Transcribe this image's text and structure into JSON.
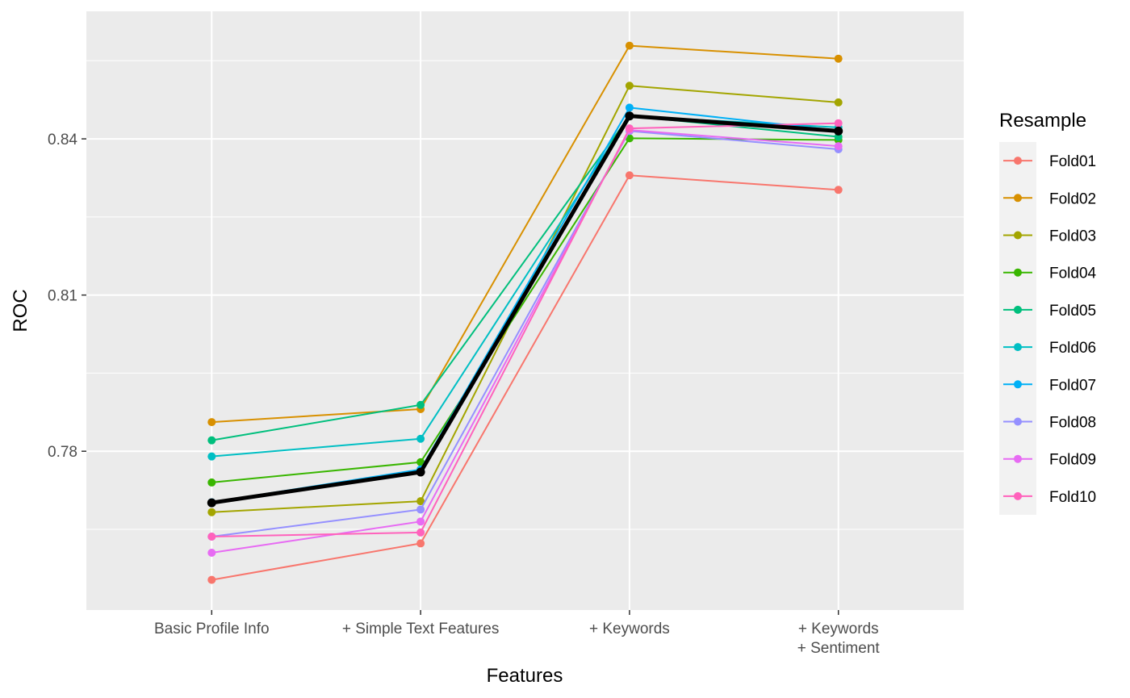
{
  "chart_data": {
    "type": "line",
    "xlabel": "Features",
    "ylabel": "ROC",
    "categories": [
      [
        "Basic Profile Info"
      ],
      [
        "+ Simple Text Features"
      ],
      [
        "+ Keywords"
      ],
      [
        "+ Keywords",
        "+ Sentiment"
      ]
    ],
    "ylim": [
      0.7495,
      0.8645
    ],
    "yticks": [
      0.78,
      0.81,
      0.84
    ],
    "ytick_labels": [
      "0.78",
      "0.81",
      "0.84"
    ],
    "grid": true,
    "legend": {
      "title": "Resample",
      "position": "right"
    },
    "series": [
      {
        "name": "Fold01",
        "color": "#F8766D",
        "values": [
          0.7553,
          0.7623,
          0.833,
          0.8302
        ]
      },
      {
        "name": "Fold02",
        "color": "#D89000",
        "values": [
          0.7856,
          0.7881,
          0.8579,
          0.8554
        ]
      },
      {
        "name": "Fold03",
        "color": "#A3A500",
        "values": [
          0.7683,
          0.7704,
          0.8502,
          0.847
        ]
      },
      {
        "name": "Fold04",
        "color": "#39B600",
        "values": [
          0.774,
          0.7779,
          0.8401,
          0.8398
        ]
      },
      {
        "name": "Fold05",
        "color": "#00BF7D",
        "values": [
          0.7821,
          0.7889,
          0.8444,
          0.8404
        ]
      },
      {
        "name": "Fold06",
        "color": "#00BFC4",
        "values": [
          0.779,
          0.7824,
          0.8444,
          0.8422
        ]
      },
      {
        "name": "Fold07",
        "color": "#00B0F6",
        "values": [
          0.7702,
          0.7765,
          0.846,
          0.8416
        ]
      },
      {
        "name": "Fold08",
        "color": "#9590FF",
        "values": [
          0.7636,
          0.7688,
          0.8415,
          0.838
        ]
      },
      {
        "name": "Fold09",
        "color": "#E76BF3",
        "values": [
          0.7605,
          0.7665,
          0.8417,
          0.8386
        ]
      },
      {
        "name": "Fold10",
        "color": "#FF62BC",
        "values": [
          0.7636,
          0.7644,
          0.842,
          0.843
        ]
      },
      {
        "color": "#000000",
        "values": [
          0.7701,
          0.776,
          0.8444,
          0.8415
        ]
      }
    ]
  }
}
